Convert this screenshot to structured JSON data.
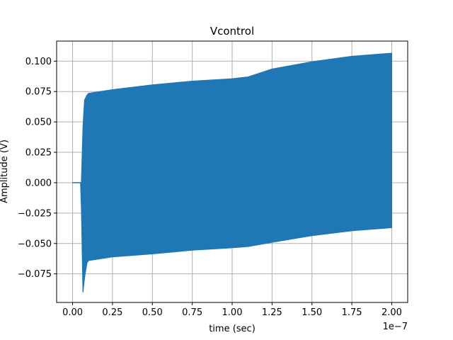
{
  "chart_data": {
    "type": "area",
    "title": "Vcontrol",
    "xlabel": "time (sec)",
    "ylabel": "Amplitude (V)",
    "x_offset_label": "1e−7",
    "xlim": [
      -1e-08,
      2.1e-07
    ],
    "ylim": [
      -0.0985,
      0.1165
    ],
    "xticks": [
      0.0,
      2.5e-08,
      5e-08,
      7.5e-08,
      1e-07,
      1.25e-07,
      1.5e-07,
      1.75e-07,
      2e-07
    ],
    "xtick_labels": [
      "0.00",
      "0.25",
      "0.50",
      "0.75",
      "1.00",
      "1.25",
      "1.50",
      "1.75",
      "2.00"
    ],
    "yticks": [
      -0.075,
      -0.05,
      -0.025,
      0.0,
      0.025,
      0.05,
      0.075,
      0.1
    ],
    "ytick_labels": [
      "−0.075",
      "−0.050",
      "−0.025",
      "0.000",
      "0.025",
      "0.050",
      "0.075",
      "0.100"
    ],
    "grid": true,
    "series": [
      {
        "color": "#1f77b4",
        "style": "oscillating envelope",
        "x": [
          0.0,
          5e-09,
          5.5e-09,
          6.5e-09,
          7.5e-09,
          9e-09,
          1e-08,
          2.5e-08,
          5e-08,
          7.5e-08,
          1e-07,
          1.1e-07,
          1.25e-07,
          1.5e-07,
          1.75e-07,
          2e-07
        ],
        "upper": [
          0.0,
          0.0,
          0.0,
          0.045,
          0.068,
          0.072,
          0.0735,
          0.0765,
          0.0805,
          0.0835,
          0.0855,
          0.087,
          0.0935,
          0.0995,
          0.104,
          0.1065
        ],
        "lower": [
          0.0,
          0.0,
          -0.02,
          -0.09,
          -0.078,
          -0.066,
          -0.064,
          -0.061,
          -0.0585,
          -0.0555,
          -0.0535,
          -0.0525,
          -0.049,
          -0.0435,
          -0.0395,
          -0.037
        ]
      }
    ]
  }
}
